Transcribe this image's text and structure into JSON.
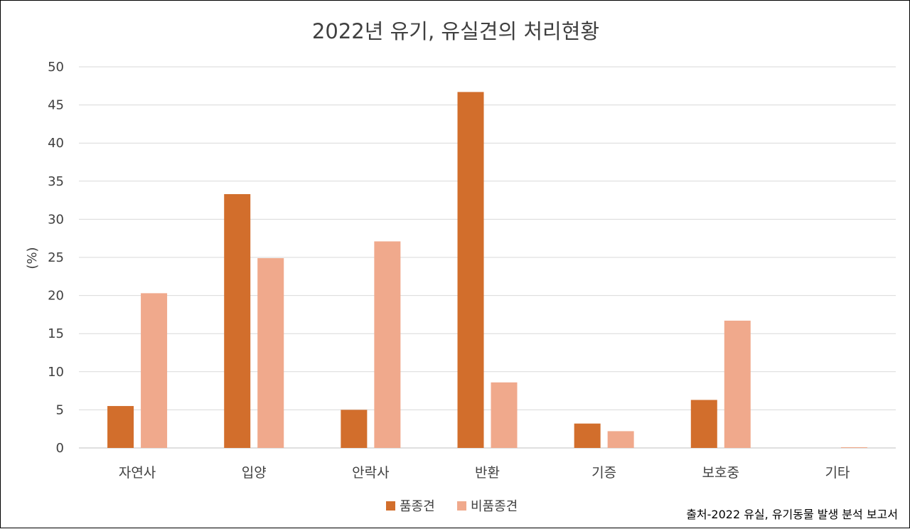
{
  "chart_data": {
    "type": "bar",
    "title": "2022년 유기, 유실견의 처리현황",
    "xlabel": "",
    "ylabel": "(%)",
    "ylim": [
      0,
      50
    ],
    "yticks": [
      0,
      5,
      10,
      15,
      20,
      25,
      30,
      35,
      40,
      45,
      50
    ],
    "grid": true,
    "legend_position": "bottom",
    "categories": [
      "자연사",
      "입양",
      "안락사",
      "반환",
      "기증",
      "보호중",
      "기타"
    ],
    "series": [
      {
        "name": "품종견",
        "color": "#D26E2C",
        "values": [
          5.5,
          33.3,
          5.0,
          46.7,
          3.2,
          6.3,
          0.0
        ]
      },
      {
        "name": "비품종견",
        "color": "#F0A98C",
        "values": [
          20.3,
          24.9,
          27.1,
          8.6,
          2.2,
          16.7,
          0.1
        ]
      }
    ],
    "source_note": "출처-2022 유실, 유기동물 발생 분석 보고서"
  }
}
